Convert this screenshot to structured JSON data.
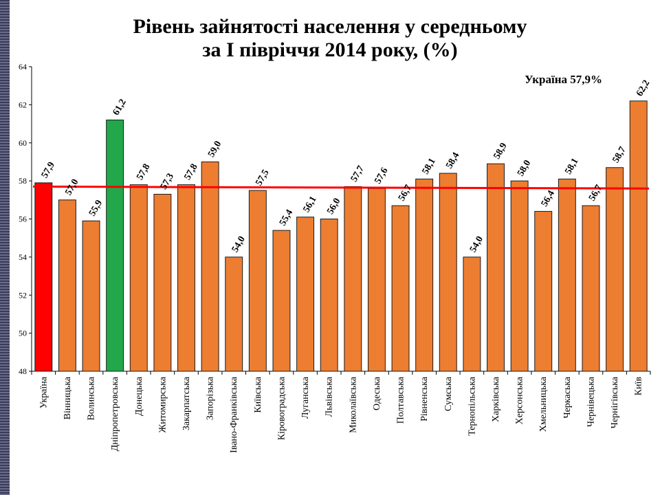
{
  "chart_data": {
    "type": "bar",
    "title_line1": "Рівень зайнятості населення у середньому",
    "title_line2": "за І півріччя 2014 року, (%)",
    "annotation": "Україна 57,9%",
    "xlabel": "",
    "ylabel": "",
    "ylim": [
      48,
      64
    ],
    "yticks": [
      48,
      50,
      52,
      54,
      56,
      58,
      60,
      62,
      64
    ],
    "categories": [
      "Україна",
      "Вінницька",
      "Волинська",
      "Дніпропетровська",
      "Донецька",
      "Житомирська",
      "Закарпатська",
      "Запорізька",
      "Івано-Франківська",
      "Київська",
      "Кіровоградська",
      "Луганська",
      "Львівська",
      "Миколаївська",
      "Одеська",
      "Полтавська",
      "Рівненська",
      "Сумська",
      "Тернопільська",
      "Харківська",
      "Херсонська",
      "Хмельницька",
      "Черкаська",
      "Чернівецька",
      "Чернігівська",
      "Київ"
    ],
    "values": [
      57.9,
      57.0,
      55.9,
      61.2,
      57.8,
      57.3,
      57.8,
      59.0,
      54.0,
      57.5,
      55.4,
      56.1,
      56.0,
      57.7,
      57.6,
      56.7,
      58.1,
      58.4,
      54.0,
      58.9,
      58.0,
      56.4,
      58.1,
      56.7,
      58.7,
      62.2
    ],
    "value_labels": [
      "57,9",
      "57,0",
      "55,9",
      "61,2",
      "57,8",
      "57,3",
      "57,8",
      "59,0",
      "54,0",
      "57,5",
      "55,4",
      "56,1",
      "56,0",
      "57,7",
      "57,6",
      "56,7",
      "58,1",
      "58,4",
      "54,0",
      "58,9",
      "58,0",
      "56,4",
      "58,1",
      "56,7",
      "58,7",
      "62,2"
    ],
    "bar_colors": {
      "default": "#ed7d31",
      "highlight_country": "#ff0000",
      "highlight_max_region": "#22a84a"
    },
    "highlight_index_country": 0,
    "highlight_index_region": 3,
    "reference_line": {
      "start": 57.7,
      "end": 57.6,
      "color": "#ff0000"
    },
    "grid": false,
    "legend": "none"
  }
}
